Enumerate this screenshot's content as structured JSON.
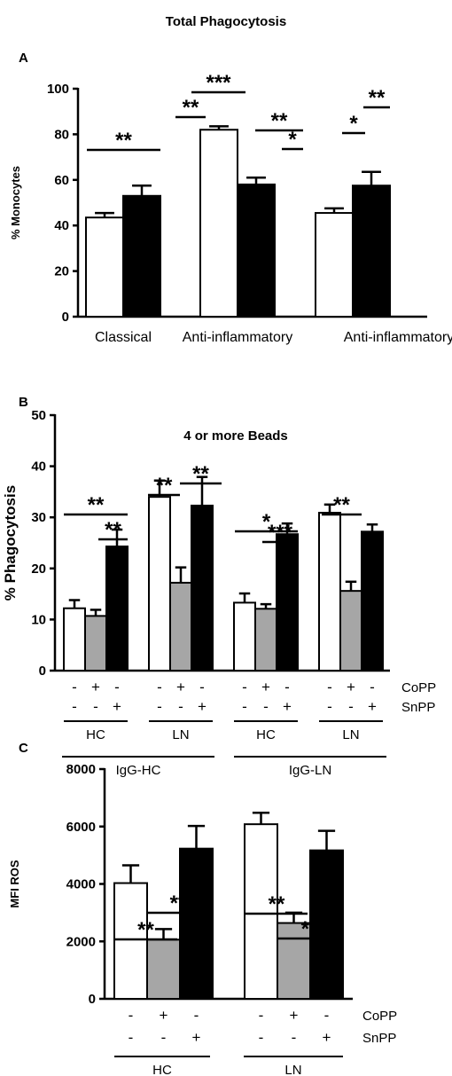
{
  "title": "Total Phagocytosis",
  "colors": {
    "white_bar": "#ffffff",
    "gray_bar": "#a6a6a6",
    "black_bar": "#000000"
  },
  "chart_data": [
    {
      "panel": "A",
      "type": "bar",
      "ylabel": "% Monocytes",
      "ylim": [
        0,
        100
      ],
      "yticks": [
        0,
        20,
        40,
        60,
        80,
        100
      ],
      "groups": [
        {
          "label": "Classical",
          "bars": [
            {
              "color": "white",
              "value": 43.5,
              "error": 2
            },
            {
              "color": "black",
              "value": 53,
              "error": 4.5
            }
          ]
        },
        {
          "label": "Anti-inflammatory",
          "bars": [
            {
              "color": "white",
              "value": 82,
              "error": 1.5
            },
            {
              "color": "black",
              "value": 58,
              "error": 3
            }
          ]
        },
        {
          "label": "Anti-inflammatory",
          "bars": [
            {
              "color": "white",
              "value": 45.5,
              "error": 2
            },
            {
              "color": "black",
              "value": 57.5,
              "error": 6
            }
          ]
        }
      ],
      "significance": [
        "**",
        "**",
        "***",
        "**",
        "*",
        "*",
        "**"
      ]
    },
    {
      "panel": "B",
      "type": "bar",
      "title": "4 or more Beads",
      "ylabel": "% Phagocytosis",
      "ylim": [
        0,
        50
      ],
      "yticks": [
        0,
        10,
        20,
        30,
        40,
        50
      ],
      "groups": [
        {
          "bars": [
            {
              "color": "white",
              "value": 12.2,
              "error": 1.6
            },
            {
              "color": "gray",
              "value": 10.7,
              "error": 1.2
            },
            {
              "color": "black",
              "value": 24.3,
              "error": 3.3
            }
          ]
        },
        {
          "bars": [
            {
              "color": "white",
              "value": 34,
              "error": 3.2
            },
            {
              "color": "gray",
              "value": 17.2,
              "error": 3
            },
            {
              "color": "black",
              "value": 32.3,
              "error": 5.6
            }
          ]
        },
        {
          "bars": [
            {
              "color": "white",
              "value": 13.3,
              "error": 1.8
            },
            {
              "color": "gray",
              "value": 12.1,
              "error": 0.9
            },
            {
              "color": "black",
              "value": 26.7,
              "error": 2.1
            }
          ]
        },
        {
          "bars": [
            {
              "color": "white",
              "value": 30.9,
              "error": 1.6
            },
            {
              "color": "gray",
              "value": 15.6,
              "error": 1.8
            },
            {
              "color": "black",
              "value": 27.2,
              "error": 1.4
            }
          ]
        }
      ],
      "signs": {
        "CoPP": [
          "-",
          "+",
          "-",
          "-",
          "+",
          "-",
          "-",
          "+",
          "-",
          "-",
          "+",
          "-"
        ],
        "SnPP": [
          "-",
          "-",
          "+",
          "-",
          "-",
          "+",
          "-",
          "-",
          "+",
          "-",
          "-",
          "+"
        ]
      },
      "treatments": [
        "CoPP",
        "SnPP"
      ],
      "sublabels": [
        "HC",
        "LN",
        "HC",
        "LN"
      ],
      "superlabels": [
        "IgG-HC",
        "IgG-LN"
      ],
      "significance": [
        "**",
        "**",
        "**",
        "**",
        "*",
        "***",
        "**"
      ]
    },
    {
      "panel": "C",
      "type": "bar",
      "ylabel": "MFI ROS",
      "ylim": [
        0,
        8000
      ],
      "yticks": [
        0,
        2000,
        4000,
        6000,
        8000
      ],
      "groups": [
        {
          "bars": [
            {
              "color": "white",
              "value": 4030,
              "error": 620
            },
            {
              "color": "gray",
              "value": 2060,
              "error": 370
            },
            {
              "color": "black",
              "value": 5230,
              "error": 790
            }
          ]
        },
        {
          "bars": [
            {
              "color": "white",
              "value": 6080,
              "error": 400
            },
            {
              "color": "gray",
              "value": 2640,
              "error": 360
            },
            {
              "color": "black",
              "value": 5170,
              "error": 680
            }
          ]
        }
      ],
      "signs": {
        "CoPP": [
          "-",
          "+",
          "-",
          "-",
          "+",
          "-"
        ],
        "SnPP": [
          "-",
          "-",
          "+",
          "-",
          "-",
          "+"
        ]
      },
      "treatments": [
        "CoPP",
        "SnPP"
      ],
      "sublabels": [
        "HC",
        "LN"
      ],
      "significance": [
        "**",
        "**",
        "**",
        "**"
      ]
    }
  ]
}
